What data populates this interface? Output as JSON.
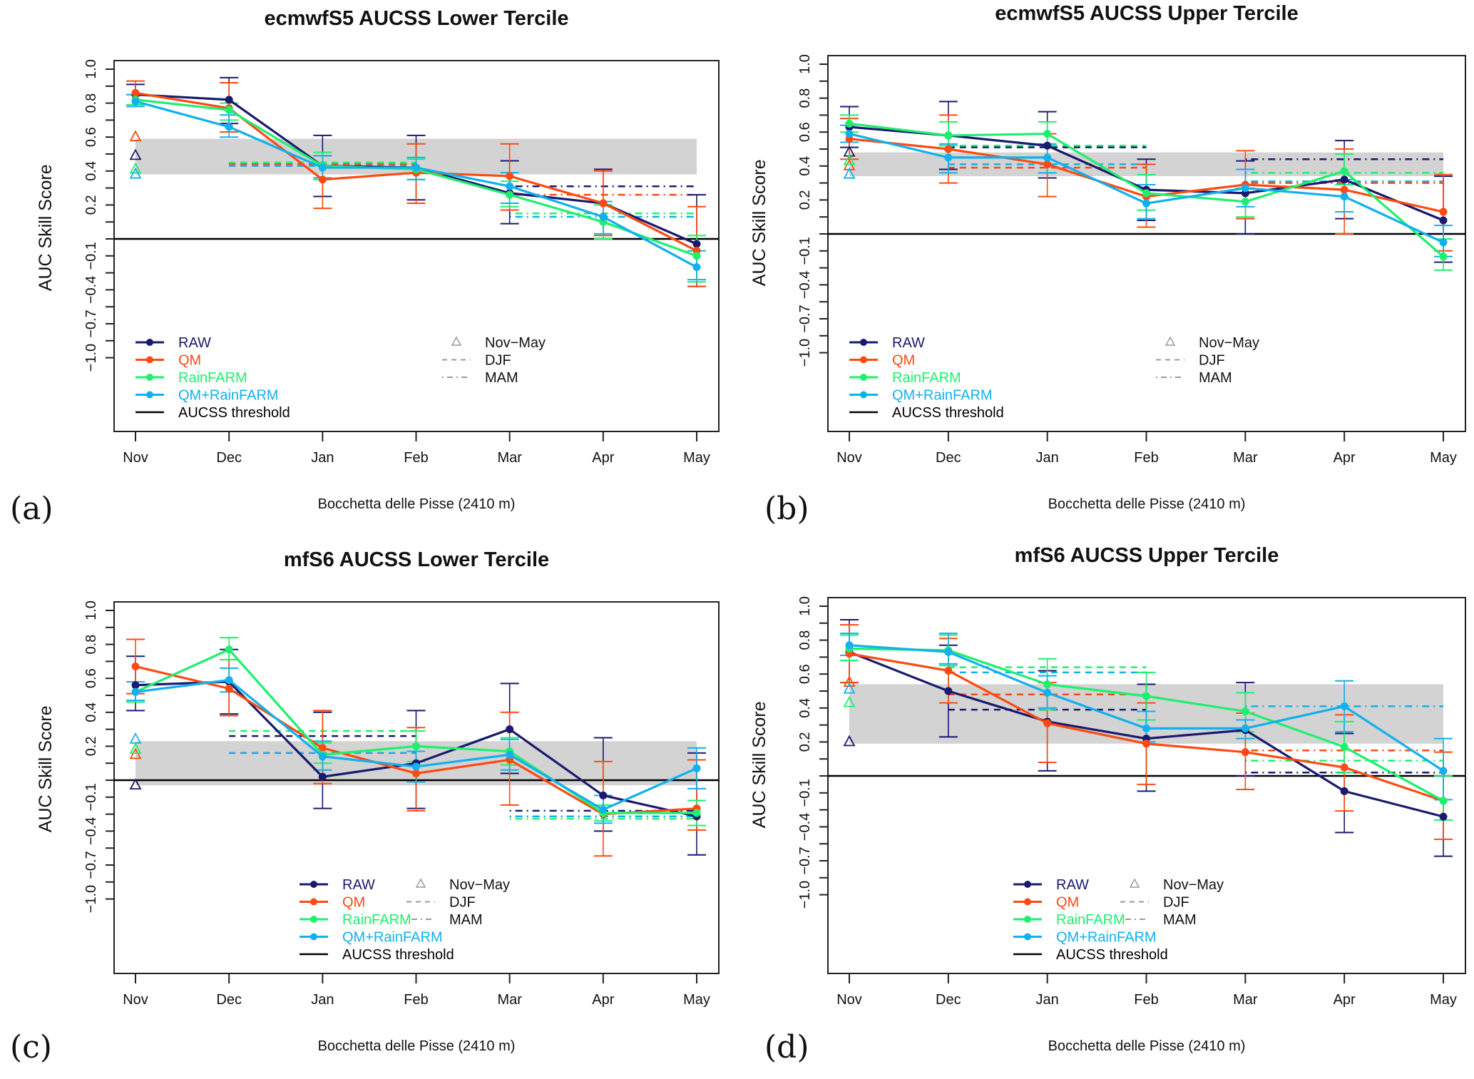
{
  "figure": {
    "y_axis_label": "AUC Skill Score",
    "x_axis_sublabel": "Bocchetta delle Pisse (2410 m)",
    "months": [
      "Nov",
      "Dec",
      "Jan",
      "Feb",
      "Mar",
      "Apr",
      "May"
    ],
    "y_ticks": [
      1.0,
      0.9,
      0.8,
      0.7,
      0.6,
      0.5,
      0.4,
      0.3,
      0.2,
      0.1,
      0,
      -0.1,
      -0.25,
      -0.4,
      -0.55,
      -0.7,
      -0.85,
      -1.0
    ],
    "y_tick_labels": [
      {
        "v": 1.0,
        "t": "1.0"
      },
      {
        "v": 0.8,
        "t": "0.8"
      },
      {
        "v": 0.6,
        "t": "0.6"
      },
      {
        "v": 0.4,
        "t": "0.4"
      },
      {
        "v": 0.2,
        "t": "0.2"
      },
      {
        "v": -0.1,
        "t": "−0.1"
      },
      {
        "v": -0.4,
        "t": "−0.4"
      },
      {
        "v": -0.7,
        "t": "−0.7"
      },
      {
        "v": -1.0,
        "t": "−1.0"
      }
    ],
    "y_scale_note": "piecewise: 0 to 1 linear; 0 to -0.1 one tick; -0.1 to -1.0 at 0.15 per tick",
    "colors": {
      "RAW": "#1a1a6e",
      "QM": "#ff4a12",
      "RainFARM": "#1ef06e",
      "QM+RainFARM": "#12b0ee",
      "threshold": "#000000",
      "band": "#d3d3d3",
      "legend_grey": "#9a9a9a"
    },
    "legend": {
      "series": [
        "RAW",
        "QM",
        "RainFARM",
        "QM+RainFARM"
      ],
      "threshold": "AUCSS threshold",
      "periods": [
        {
          "label": "Nov−May",
          "symbol": "triangle"
        },
        {
          "label": "DJF",
          "symbol": "dashed"
        },
        {
          "label": "MAM",
          "symbol": "dot-dash"
        }
      ]
    }
  },
  "chart_data": [
    {
      "panel": "(a)",
      "type": "line",
      "title": "ecmwfS5 AUCSS Lower Tercile",
      "xlabel": "Bocchetta delle Pisse (2410 m)",
      "ylabel": "AUC Skill Score",
      "ylim": [
        -1.0,
        1.0
      ],
      "categories": [
        "Nov",
        "Dec",
        "Jan",
        "Feb",
        "Mar",
        "Apr",
        "May"
      ],
      "threshold": 0,
      "band": [
        0.38,
        0.59
      ],
      "legend_position": "bottom-left",
      "series": [
        {
          "name": "RAW",
          "values": [
            0.85,
            0.82,
            0.43,
            0.42,
            0.27,
            0.21,
            -0.03
          ],
          "err_low": [
            0.79,
            0.68,
            0.25,
            0.23,
            0.09,
            0.0,
            -0.37
          ],
          "err_high": [
            0.91,
            0.95,
            0.61,
            0.61,
            0.46,
            0.41,
            0.26
          ],
          "nov_may": 0.49,
          "djf": 0.44,
          "mam": 0.31
        },
        {
          "name": "QM",
          "values": [
            0.86,
            0.77,
            0.35,
            0.39,
            0.37,
            0.21,
            -0.07
          ],
          "err_low": [
            0.79,
            0.63,
            0.18,
            0.21,
            0.17,
            0.02,
            -0.37
          ],
          "err_high": [
            0.93,
            0.92,
            0.49,
            0.56,
            0.56,
            0.4,
            0.19
          ],
          "nov_may": 0.6,
          "djf": 0.44,
          "mam": 0.26
        },
        {
          "name": "RainFARM",
          "values": [
            0.82,
            0.76,
            0.43,
            0.41,
            0.26,
            0.1,
            -0.1
          ],
          "err_low": [
            0.79,
            0.7,
            0.35,
            0.35,
            0.19,
            0.0,
            -0.33
          ],
          "err_high": [
            0.85,
            0.8,
            0.51,
            0.47,
            0.34,
            0.2,
            0.02
          ],
          "nov_may": 0.41,
          "djf": 0.45,
          "mam": 0.15
        },
        {
          "name": "QM+RainFARM",
          "values": [
            0.81,
            0.66,
            0.42,
            0.42,
            0.31,
            0.13,
            -0.2
          ],
          "err_low": [
            0.78,
            0.6,
            0.36,
            0.35,
            0.21,
            0.03,
            -0.31
          ],
          "err_high": [
            0.85,
            0.73,
            0.49,
            0.48,
            0.39,
            0.22,
            -0.07
          ],
          "nov_may": 0.38,
          "djf": 0.43,
          "mam": 0.13
        }
      ]
    },
    {
      "panel": "(b)",
      "type": "line",
      "title": "ecmwfS5 AUCSS Upper Tercile",
      "xlabel": "Bocchetta delle Pisse (2410 m)",
      "ylabel": "AUC Skill Score",
      "ylim": [
        -1.0,
        1.0
      ],
      "categories": [
        "Nov",
        "Dec",
        "Jan",
        "Feb",
        "Mar",
        "Apr",
        "May"
      ],
      "threshold": 0,
      "band": [
        0.34,
        0.48
      ],
      "legend_position": "bottom-left",
      "series": [
        {
          "name": "RAW",
          "values": [
            0.63,
            0.58,
            0.52,
            0.26,
            0.24,
            0.32,
            0.08
          ],
          "err_low": [
            0.51,
            0.38,
            0.33,
            0.08,
            0.0,
            0.09,
            -0.2
          ],
          "err_high": [
            0.75,
            0.78,
            0.72,
            0.44,
            0.43,
            0.55,
            0.34
          ],
          "nov_may": 0.48,
          "djf": 0.51,
          "mam": 0.44
        },
        {
          "name": "QM",
          "values": [
            0.56,
            0.5,
            0.41,
            0.22,
            0.29,
            0.26,
            0.13
          ],
          "err_low": [
            0.44,
            0.3,
            0.22,
            0.04,
            0.09,
            0.0,
            -0.1
          ],
          "err_high": [
            0.68,
            0.7,
            0.59,
            0.41,
            0.49,
            0.5,
            0.35
          ],
          "nov_may": 0.4,
          "djf": 0.39,
          "mam": 0.3
        },
        {
          "name": "RainFARM",
          "values": [
            0.65,
            0.58,
            0.59,
            0.24,
            0.19,
            0.37,
            -0.15
          ],
          "err_low": [
            0.6,
            0.52,
            0.52,
            0.14,
            0.1,
            0.29,
            -0.27
          ],
          "err_high": [
            0.7,
            0.66,
            0.66,
            0.35,
            0.27,
            0.47,
            -0.03
          ],
          "nov_may": 0.43,
          "djf": 0.52,
          "mam": 0.36
        },
        {
          "name": "QM+RainFARM",
          "values": [
            0.59,
            0.45,
            0.45,
            0.18,
            0.27,
            0.22,
            -0.05
          ],
          "err_low": [
            0.54,
            0.36,
            0.36,
            0.09,
            0.16,
            0.13,
            -0.15
          ],
          "err_high": [
            0.64,
            0.53,
            0.53,
            0.29,
            0.38,
            0.32,
            0.05
          ],
          "nov_may": 0.35,
          "djf": 0.41,
          "mam": 0.31
        }
      ]
    },
    {
      "panel": "(c)",
      "type": "line",
      "title": "mfS6 AUCSS Lower Tercile",
      "xlabel": "Bocchetta delle Pisse (2410 m)",
      "ylabel": "AUC Skill Score",
      "ylim": [
        -1.0,
        1.0
      ],
      "categories": [
        "Nov",
        "Dec",
        "Jan",
        "Feb",
        "Mar",
        "Apr",
        "May"
      ],
      "threshold": 0,
      "band": [
        -0.03,
        0.23
      ],
      "legend_position": "bottom-center",
      "series": [
        {
          "name": "RAW",
          "values": [
            0.56,
            0.58,
            0.02,
            0.1,
            0.3,
            -0.09,
            -0.27
          ],
          "err_low": [
            0.41,
            0.39,
            -0.2,
            -0.2,
            0.04,
            -0.4,
            -0.61
          ],
          "err_high": [
            0.73,
            0.77,
            0.4,
            0.41,
            0.57,
            0.25,
            0.16
          ],
          "nov_may": -0.03,
          "djf": 0.26,
          "mam": -0.22
        },
        {
          "name": "QM",
          "values": [
            0.67,
            0.54,
            0.19,
            0.04,
            0.12,
            -0.25,
            -0.2
          ],
          "err_low": [
            0.51,
            0.38,
            -0.02,
            -0.22,
            -0.17,
            -0.62,
            -0.39
          ],
          "err_high": [
            0.83,
            0.71,
            0.41,
            0.31,
            0.4,
            0.11,
            0.12
          ],
          "nov_may": 0.15,
          "djf": 0.16,
          "mam": -0.27
        },
        {
          "name": "RainFARM",
          "values": [
            0.52,
            0.77,
            0.15,
            0.2,
            0.17,
            -0.24,
            -0.24
          ],
          "err_low": [
            0.46,
            0.71,
            0.1,
            0.11,
            0.09,
            -0.31,
            -0.35
          ],
          "err_high": [
            0.58,
            0.84,
            0.22,
            0.29,
            0.25,
            -0.17,
            -0.13
          ],
          "nov_may": 0.18,
          "djf": 0.29,
          "mam": -0.29
        },
        {
          "name": "QM+RainFARM",
          "values": [
            0.52,
            0.59,
            0.14,
            0.08,
            0.15,
            -0.21,
            0.07
          ],
          "err_low": [
            0.47,
            0.52,
            0.06,
            -0.01,
            0.06,
            -0.33,
            -0.05
          ],
          "err_high": [
            0.58,
            0.66,
            0.23,
            0.17,
            0.24,
            -0.09,
            0.19
          ],
          "nov_may": 0.24,
          "djf": 0.16,
          "mam": -0.27
        }
      ]
    },
    {
      "panel": "(d)",
      "type": "line",
      "title": "mfS6 AUCSS Upper Tercile",
      "xlabel": "Bocchetta delle Pisse (2410 m)",
      "ylabel": "AUC Skill Score",
      "ylim": [
        -1.0,
        1.0
      ],
      "categories": [
        "Nov",
        "Dec",
        "Jan",
        "Feb",
        "Mar",
        "Apr",
        "May"
      ],
      "threshold": 0,
      "band": [
        0.19,
        0.54
      ],
      "legend_position": "bottom-center",
      "series": [
        {
          "name": "RAW",
          "values": [
            0.73,
            0.5,
            0.32,
            0.22,
            0.27,
            -0.09,
            -0.31
          ],
          "err_low": [
            0.55,
            0.23,
            0.03,
            -0.09,
            0.0,
            -0.45,
            -0.66
          ],
          "err_high": [
            0.92,
            0.77,
            0.62,
            0.54,
            0.55,
            0.25,
            0.0
          ],
          "nov_may": 0.2,
          "djf": 0.39,
          "mam": 0.02
        },
        {
          "name": "QM",
          "values": [
            0.72,
            0.62,
            0.31,
            0.19,
            0.14,
            0.05,
            -0.17
          ],
          "err_low": [
            0.55,
            0.43,
            0.08,
            -0.05,
            -0.08,
            -0.26,
            -0.51
          ],
          "err_high": [
            0.89,
            0.81,
            0.55,
            0.43,
            0.37,
            0.36,
            0.14
          ],
          "nov_may": 0.55,
          "djf": 0.48,
          "mam": 0.15
        },
        {
          "name": "RainFARM",
          "values": [
            0.75,
            0.74,
            0.54,
            0.47,
            0.38,
            0.17,
            -0.17
          ],
          "err_low": [
            0.68,
            0.65,
            0.39,
            0.33,
            0.26,
            0.02,
            -0.34
          ],
          "err_high": [
            0.83,
            0.83,
            0.69,
            0.61,
            0.49,
            0.32,
            0.0
          ],
          "nov_may": 0.43,
          "djf": 0.64,
          "mam": 0.09
        },
        {
          "name": "QM+RainFARM",
          "values": [
            0.77,
            0.73,
            0.49,
            0.28,
            0.28,
            0.41,
            0.03
          ],
          "err_low": [
            0.71,
            0.66,
            0.4,
            0.2,
            0.22,
            0.26,
            -0.16
          ],
          "err_high": [
            0.84,
            0.84,
            0.59,
            0.38,
            0.33,
            0.56,
            0.22
          ],
          "nov_may": 0.51,
          "djf": 0.61,
          "mam": 0.41
        }
      ]
    }
  ]
}
